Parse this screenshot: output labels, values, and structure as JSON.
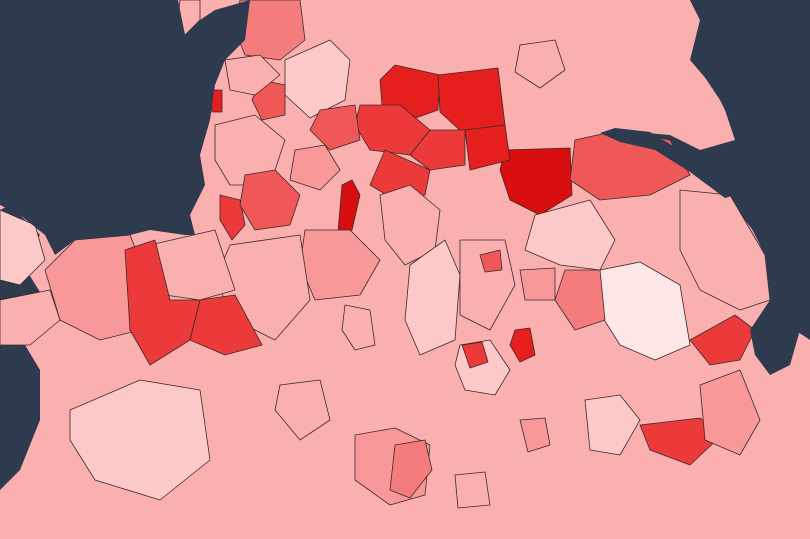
{
  "map": {
    "sea_color": "#2e3a4d",
    "border_color": "#3a2a2a",
    "scale_colors": [
      "#fde6e6",
      "#fcc8c8",
      "#fbb0b0",
      "#f89898",
      "#f47c7c",
      "#f05858",
      "#ec3a3a",
      "#e51e1e",
      "#d90f0f"
    ],
    "regions": [
      {
        "id": "r1",
        "level": 2
      },
      {
        "id": "r2",
        "level": 4
      },
      {
        "id": "r3",
        "level": 7
      },
      {
        "id": "r4",
        "level": 1
      },
      {
        "id": "r5",
        "level": 2
      },
      {
        "id": "r6",
        "level": 7
      },
      {
        "id": "r7",
        "level": 7
      },
      {
        "id": "r8",
        "level": 8
      },
      {
        "id": "r9",
        "level": 6
      },
      {
        "id": "r10",
        "level": 6
      },
      {
        "id": "r11",
        "level": 7
      },
      {
        "id": "r12",
        "level": 5
      },
      {
        "id": "r13",
        "level": 5
      },
      {
        "id": "r14",
        "level": 5
      },
      {
        "id": "r15",
        "level": 8
      },
      {
        "id": "r16",
        "level": 3
      },
      {
        "id": "r17",
        "level": 2
      },
      {
        "id": "r18",
        "level": 2
      },
      {
        "id": "r19",
        "level": 6
      },
      {
        "id": "r20",
        "level": 5
      },
      {
        "id": "r21",
        "level": 6
      },
      {
        "id": "r22",
        "level": 2
      },
      {
        "id": "r23",
        "level": 1
      },
      {
        "id": "r24",
        "level": 3
      },
      {
        "id": "r25",
        "level": 2
      },
      {
        "id": "r26",
        "level": 3
      },
      {
        "id": "r27",
        "level": 2
      },
      {
        "id": "r28",
        "level": 1
      },
      {
        "id": "r29",
        "level": 2
      },
      {
        "id": "r30",
        "level": 6
      },
      {
        "id": "r31",
        "level": 6
      },
      {
        "id": "r32",
        "level": 2
      },
      {
        "id": "r33",
        "level": 0
      },
      {
        "id": "r34",
        "level": 2
      },
      {
        "id": "r35",
        "level": 6
      },
      {
        "id": "r36",
        "level": 1
      },
      {
        "id": "r37",
        "level": 4
      },
      {
        "id": "r38",
        "level": 5
      },
      {
        "id": "r39",
        "level": 3
      },
      {
        "id": "r40",
        "level": 7
      },
      {
        "id": "r41",
        "level": 1
      },
      {
        "id": "r42",
        "level": 2
      },
      {
        "id": "r43",
        "level": 6
      },
      {
        "id": "r44",
        "level": 1
      },
      {
        "id": "r45",
        "level": 6
      },
      {
        "id": "r46",
        "level": 3
      },
      {
        "id": "r47",
        "level": 3
      },
      {
        "id": "r48",
        "level": 2
      },
      {
        "id": "r49",
        "level": 1
      },
      {
        "id": "r50",
        "level": 3
      },
      {
        "id": "r51",
        "level": 4
      },
      {
        "id": "r52",
        "level": 2
      }
    ]
  }
}
